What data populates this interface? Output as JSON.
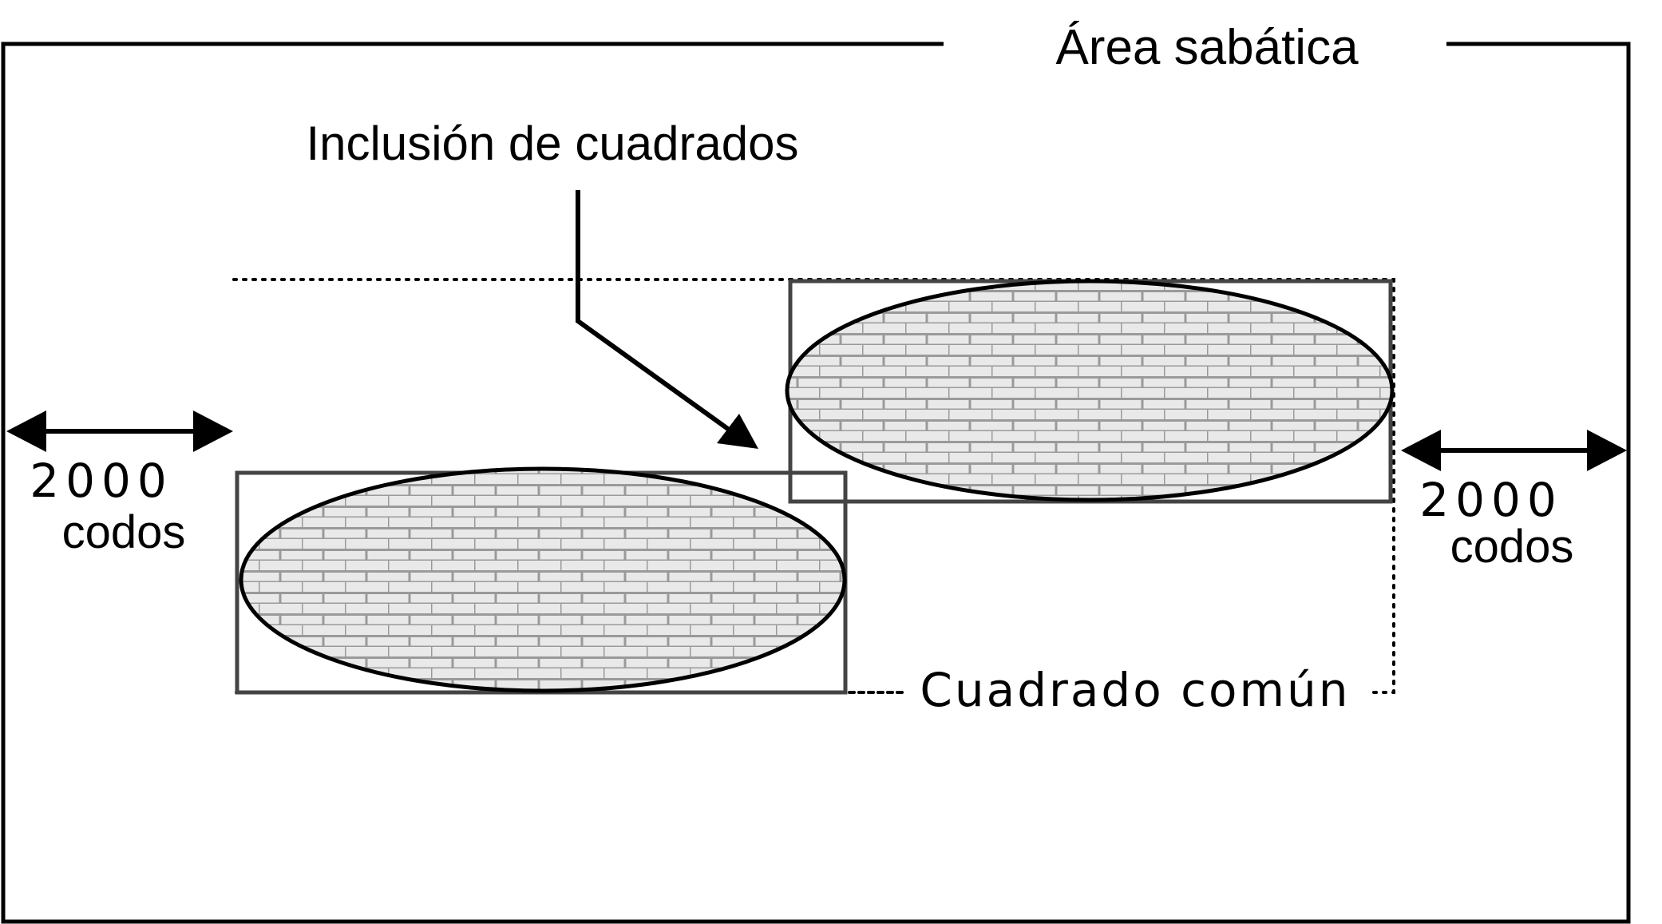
{
  "labels": {
    "sabbath_area": "Área sabática",
    "inclusion": "Inclusión de cuadrados",
    "common_square": "Cuadrado común",
    "left_distance_number": "2000",
    "left_distance_unit": "codos",
    "right_distance_number": "2000",
    "right_distance_unit": "codos"
  },
  "colors": {
    "outline": "#000000",
    "city_border": "#444444",
    "brick_fill": "#e9e9e9",
    "brick_mortar": "#9a9a9a"
  }
}
